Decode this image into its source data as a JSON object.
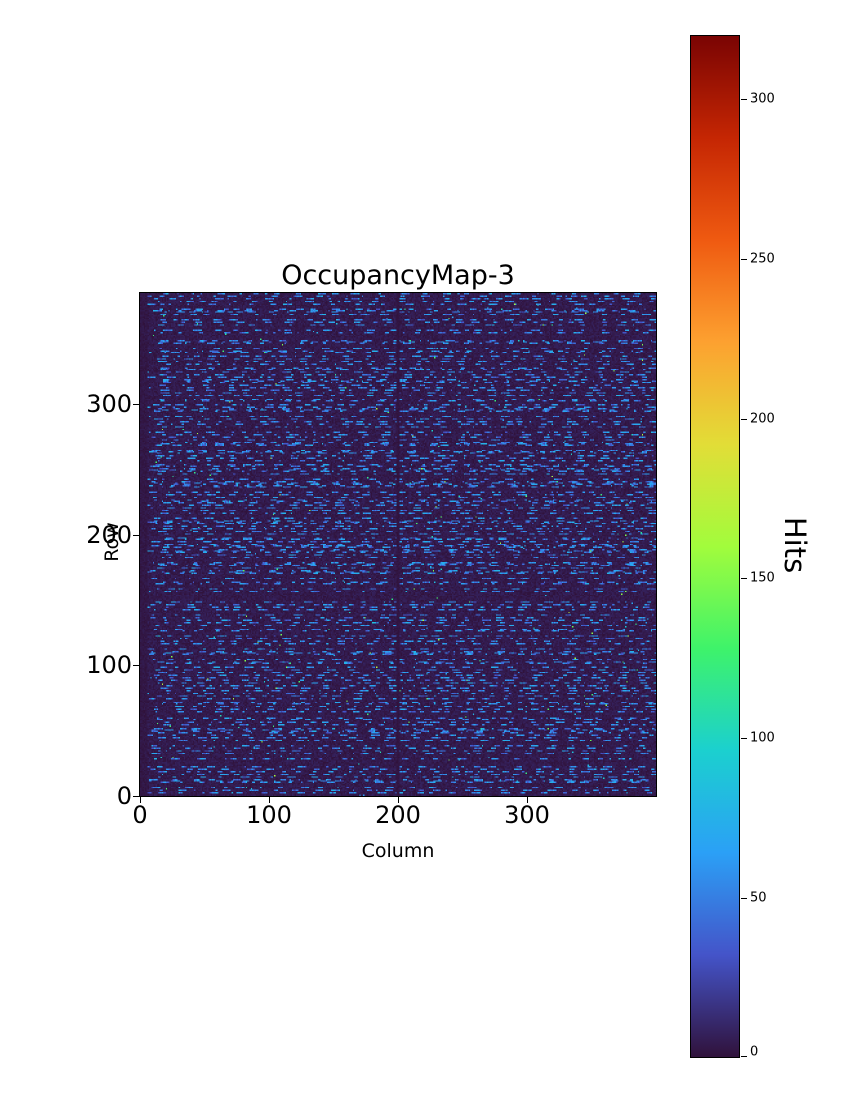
{
  "chart_data": {
    "type": "heatmap",
    "title": "OccupancyMap-3",
    "xlabel": "Column",
    "ylabel": "Row",
    "xlim": [
      0,
      400
    ],
    "ylim": [
      0,
      385
    ],
    "x_ticks": [
      0,
      100,
      200,
      300
    ],
    "y_ticks": [
      0,
      100,
      200,
      300
    ],
    "grid": false,
    "legend": false,
    "colorbar": {
      "label": "Hits",
      "ticks": [
        0,
        50,
        100,
        150,
        200,
        250,
        300
      ],
      "vmin": 0,
      "vmax": 320,
      "colormap": "turbo",
      "stops": [
        {
          "t": 0.0,
          "color": "#30123b"
        },
        {
          "t": 0.1,
          "color": "#4454c9"
        },
        {
          "t": 0.2,
          "color": "#2ba0f6"
        },
        {
          "t": 0.3,
          "color": "#1bd0cf"
        },
        {
          "t": 0.4,
          "color": "#3ef36a"
        },
        {
          "t": 0.5,
          "color": "#a2fc3c"
        },
        {
          "t": 0.6,
          "color": "#e2dd37"
        },
        {
          "t": 0.7,
          "color": "#fda130"
        },
        {
          "t": 0.8,
          "color": "#ef5a11"
        },
        {
          "t": 0.9,
          "color": "#c52603"
        },
        {
          "t": 1.0,
          "color": "#7a0403"
        }
      ]
    },
    "pattern": {
      "description": "sparse horizontal blue dash noise (hit values ~20-80) over a dark near-zero background; darker dead column at x=200 and dark left edge; occasional brighter cyan pixels",
      "rows": 385,
      "cols": 400,
      "seed": 42,
      "background_max": 8,
      "dash_value_min": 25,
      "dash_value_max": 80,
      "row_even_probability": 0.75,
      "row_odd_probability": 0.12,
      "gap_min": 3,
      "gap_max": 16,
      "dash_min": 1,
      "dash_max": 7,
      "bright_probability": 0.0015,
      "bright_value_min": 60,
      "bright_value_max": 170,
      "dead_columns": [
        199,
        200
      ],
      "edge_dark_cols": 6
    }
  }
}
